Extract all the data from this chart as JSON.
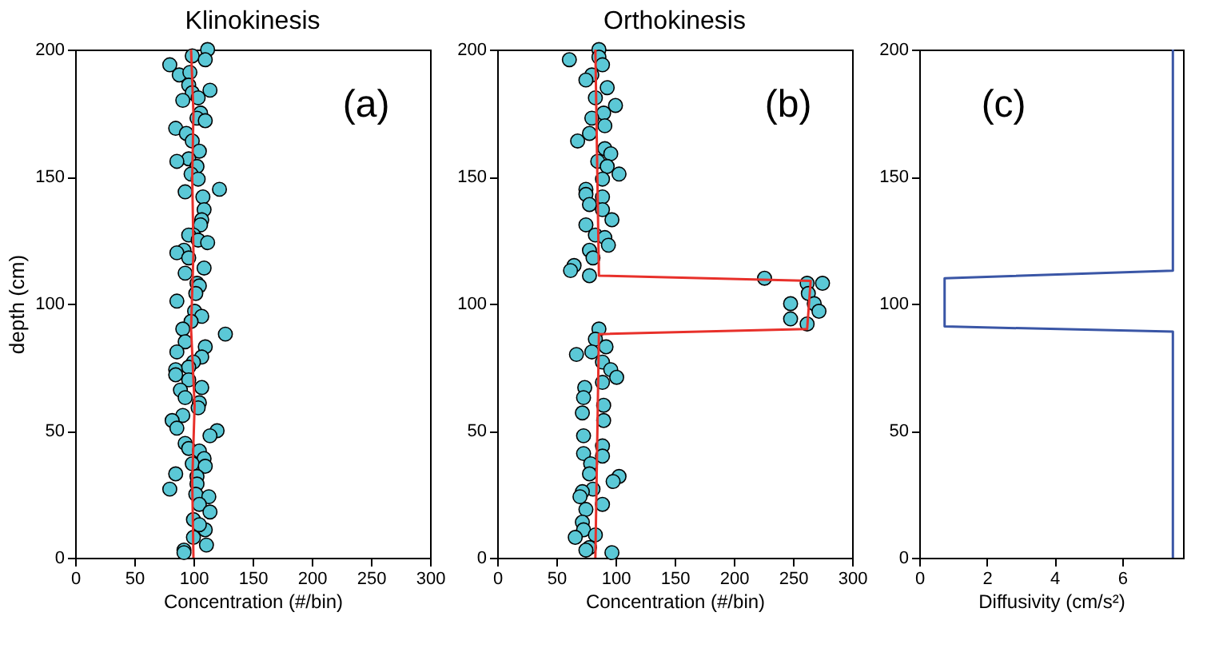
{
  "chart_data": [
    {
      "type": "scatter",
      "title": "Klinokinesis",
      "xlabel": "Concentration (#/bin)",
      "ylabel": "depth (cm)",
      "annotations": [
        "(a)"
      ],
      "xlim": [
        0,
        300
      ],
      "xticks": [
        0,
        50,
        100,
        150,
        200,
        250,
        300
      ],
      "ylim": [
        0,
        200
      ],
      "yticks": [
        0,
        50,
        100,
        150,
        200
      ],
      "series": [
        {
          "marker": "circle",
          "color": "#5bc8d6",
          "x": [
            112,
            99,
            110,
            80,
            88,
            97,
            96,
            99,
            114,
            91,
            104,
            106,
            103,
            110,
            85,
            94,
            99,
            105,
            96,
            86,
            103,
            98,
            104,
            93,
            122,
            108,
            109,
            107,
            106,
            100,
            96,
            104,
            112,
            92,
            86,
            96,
            109,
            93,
            103,
            105,
            86,
            102,
            101,
            107,
            98,
            91,
            127,
            93,
            110,
            86,
            107,
            100,
            85,
            96,
            85,
            96,
            107,
            89,
            93,
            105,
            104,
            91,
            82,
            86,
            120,
            114,
            93,
            96,
            105,
            109,
            99,
            110,
            85,
            103,
            80,
            103,
            102,
            113,
            105,
            114,
            100,
            110,
            105,
            100,
            111,
            92,
            92
          ],
          "values": [
            200,
            197.5,
            196,
            194,
            190,
            191,
            186,
            183,
            184,
            180,
            181,
            175,
            173,
            172,
            169,
            167,
            164,
            160,
            157,
            156,
            154,
            151,
            149,
            144,
            145,
            142,
            137,
            133,
            131,
            127,
            127,
            125,
            124,
            121,
            120,
            118,
            114,
            112,
            108,
            107,
            101,
            104,
            97,
            95,
            93,
            90,
            88,
            85,
            83,
            81,
            79,
            77,
            74,
            75,
            72,
            70,
            67,
            66,
            63,
            61,
            59,
            56,
            54,
            51,
            50,
            48,
            45,
            43,
            42,
            39,
            37,
            36,
            33,
            32,
            27,
            29,
            25,
            24,
            21,
            18,
            15,
            11,
            13,
            8,
            5,
            3,
            2
          ]
        },
        {
          "type": "line",
          "marker": "none",
          "line_style": "solid",
          "color": "#e8302a",
          "x": [
            100,
            99,
            101,
            98,
            100,
            99,
            100,
            98
          ],
          "values": [
            0,
            30,
            60,
            90,
            120,
            150,
            175,
            200
          ]
        }
      ]
    },
    {
      "type": "scatter",
      "title": "Orthokinesis",
      "xlabel": "Concentration (#/bin)",
      "annotations": [
        "(b)"
      ],
      "xlim": [
        0,
        300
      ],
      "xticks": [
        0,
        50,
        100,
        150,
        200,
        250,
        300
      ],
      "ylim": [
        0,
        200
      ],
      "yticks": [
        0,
        50,
        100,
        150,
        200
      ],
      "series": [
        {
          "marker": "circle",
          "color": "#5bc8d6",
          "x": [
            86,
            61,
            86,
            89,
            80,
            75,
            93,
            83,
            100,
            90,
            80,
            91,
            78,
            68,
            91,
            96,
            85,
            103,
            93,
            89,
            75,
            75,
            89,
            78,
            89,
            97,
            75,
            83,
            91,
            94,
            78,
            81,
            65,
            62,
            78,
            226,
            248,
            248,
            262,
            263,
            268,
            272,
            262,
            275,
            86,
            83,
            92,
            67,
            80,
            89,
            96,
            101,
            89,
            74,
            73,
            90,
            72,
            90,
            73,
            89,
            73,
            89,
            79,
            78,
            103,
            98,
            81,
            72,
            70,
            89,
            75,
            72,
            73,
            83,
            66,
            78,
            97,
            75
          ],
          "values": [
            200,
            196,
            197,
            194,
            190,
            188,
            185,
            181,
            178,
            175,
            173,
            170,
            167,
            164,
            161,
            159,
            156,
            151,
            154,
            149,
            145,
            143,
            142,
            139,
            137,
            133,
            131,
            127,
            126,
            123,
            121,
            118,
            115,
            113,
            111,
            110,
            100,
            94,
            108,
            104,
            100,
            97,
            92,
            108,
            90,
            86,
            83,
            80,
            81,
            77,
            74,
            71,
            69,
            67,
            63,
            60,
            57,
            54,
            48,
            44,
            41,
            40,
            37,
            33,
            32,
            30,
            27,
            26,
            24,
            21,
            19,
            14,
            11,
            9,
            8,
            4,
            2,
            3
          ]
        },
        {
          "type": "line",
          "marker": "none",
          "line_style": "solid",
          "color": "#e8302a",
          "x": [
            83,
            86,
            262,
            265,
            86,
            83
          ],
          "values": [
            0,
            88,
            90,
            109,
            111,
            200
          ]
        }
      ]
    },
    {
      "type": "line",
      "xlabel": "Diffusivity (cm/s²)",
      "annotations": [
        "(c)"
      ],
      "xlim": [
        0,
        7.8
      ],
      "xticks": [
        0,
        2,
        4,
        6
      ],
      "ylim": [
        0,
        200
      ],
      "yticks": [
        0,
        50,
        100,
        150,
        200
      ],
      "series": [
        {
          "marker": "none",
          "line_style": "solid",
          "color": "#3a56a6",
          "x": [
            7.5,
            7.5,
            0.75,
            0.75,
            7.5,
            7.5
          ],
          "values": [
            0,
            89,
            91,
            110,
            113,
            200
          ]
        }
      ]
    }
  ]
}
